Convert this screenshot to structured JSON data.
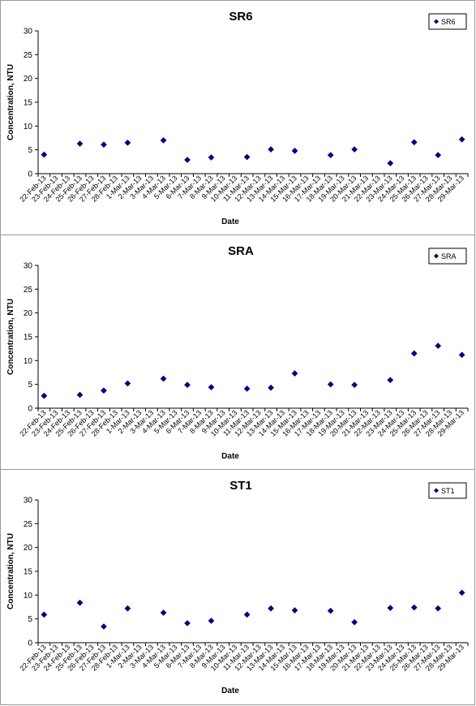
{
  "chart_data": [
    {
      "type": "scatter",
      "title": "SR6",
      "xlabel": "Date",
      "ylabel": "Concentration, NTU",
      "ylim": [
        0,
        30
      ],
      "yticks": [
        0,
        5,
        10,
        15,
        20,
        25,
        30
      ],
      "grid": false,
      "legend_position": "top-right",
      "marker_color": "#000080",
      "categories": [
        "22-Feb-13",
        "23-Feb-13",
        "24-Feb-13",
        "25-Feb-13",
        "26-Feb-13",
        "27-Feb-13",
        "28-Feb-13",
        "1-Mar-13",
        "2-Mar-13",
        "3-Mar-13",
        "4-Mar-13",
        "5-Mar-13",
        "6-Mar-13",
        "7-Mar-13",
        "8-Mar-13",
        "9-Mar-13",
        "10-Mar-13",
        "11-Mar-13",
        "12-Mar-13",
        "13-Mar-13",
        "14-Mar-13",
        "15-Mar-13",
        "16-Mar-13",
        "17-Mar-13",
        "18-Mar-13",
        "19-Mar-13",
        "20-Mar-13",
        "21-Mar-13",
        "22-Mar-13",
        "23-Mar-13",
        "24-Mar-13",
        "25-Mar-13",
        "26-Mar-13",
        "27-Mar-13",
        "28-Mar-13",
        "29-Mar-13"
      ],
      "series": [
        {
          "name": "SR6",
          "points": [
            {
              "x": "22-Feb-13",
              "y": 4.0
            },
            {
              "x": "25-Feb-13",
              "y": 6.3
            },
            {
              "x": "27-Feb-13",
              "y": 6.1
            },
            {
              "x": "1-Mar-13",
              "y": 6.5
            },
            {
              "x": "4-Mar-13",
              "y": 7.0
            },
            {
              "x": "6-Mar-13",
              "y": 2.9
            },
            {
              "x": "8-Mar-13",
              "y": 3.4
            },
            {
              "x": "11-Mar-13",
              "y": 3.5
            },
            {
              "x": "13-Mar-13",
              "y": 5.1
            },
            {
              "x": "15-Mar-13",
              "y": 4.8
            },
            {
              "x": "18-Mar-13",
              "y": 3.9
            },
            {
              "x": "20-Mar-13",
              "y": 5.1
            },
            {
              "x": "23-Mar-13",
              "y": 2.2
            },
            {
              "x": "25-Mar-13",
              "y": 6.6
            },
            {
              "x": "27-Mar-13",
              "y": 3.9
            },
            {
              "x": "29-Mar-13",
              "y": 7.2
            }
          ]
        }
      ]
    },
    {
      "type": "scatter",
      "title": "SRA",
      "xlabel": "Date",
      "ylabel": "Concentration, NTU",
      "ylim": [
        0,
        30
      ],
      "yticks": [
        0,
        5,
        10,
        15,
        20,
        25,
        30
      ],
      "grid": false,
      "legend_position": "top-right",
      "marker_color": "#000080",
      "categories": [
        "22-Feb-13",
        "23-Feb-13",
        "24-Feb-13",
        "25-Feb-13",
        "26-Feb-13",
        "27-Feb-13",
        "28-Feb-13",
        "1-Mar-13",
        "2-Mar-13",
        "3-Mar-13",
        "4-Mar-13",
        "5-Mar-13",
        "6-Mar-13",
        "7-Mar-13",
        "8-Mar-13",
        "9-Mar-13",
        "10-Mar-13",
        "11-Mar-13",
        "12-Mar-13",
        "13-Mar-13",
        "14-Mar-13",
        "15-Mar-13",
        "16-Mar-13",
        "17-Mar-13",
        "18-Mar-13",
        "19-Mar-13",
        "20-Mar-13",
        "21-Mar-13",
        "22-Mar-13",
        "23-Mar-13",
        "24-Mar-13",
        "25-Mar-13",
        "26-Mar-13",
        "27-Mar-13",
        "28-Mar-13",
        "29-Mar-13"
      ],
      "series": [
        {
          "name": "SRA",
          "points": [
            {
              "x": "22-Feb-13",
              "y": 2.6
            },
            {
              "x": "25-Feb-13",
              "y": 2.8
            },
            {
              "x": "27-Feb-13",
              "y": 3.7
            },
            {
              "x": "1-Mar-13",
              "y": 5.2
            },
            {
              "x": "4-Mar-13",
              "y": 6.2
            },
            {
              "x": "6-Mar-13",
              "y": 4.9
            },
            {
              "x": "8-Mar-13",
              "y": 4.4
            },
            {
              "x": "11-Mar-13",
              "y": 4.1
            },
            {
              "x": "13-Mar-13",
              "y": 4.3
            },
            {
              "x": "15-Mar-13",
              "y": 7.3
            },
            {
              "x": "18-Mar-13",
              "y": 5.0
            },
            {
              "x": "20-Mar-13",
              "y": 4.9
            },
            {
              "x": "23-Mar-13",
              "y": 5.9
            },
            {
              "x": "25-Mar-13",
              "y": 11.5
            },
            {
              "x": "27-Mar-13",
              "y": 13.1
            },
            {
              "x": "29-Mar-13",
              "y": 11.2
            }
          ]
        }
      ]
    },
    {
      "type": "scatter",
      "title": "ST1",
      "xlabel": "Date",
      "ylabel": "Concentration, NTU",
      "ylim": [
        0,
        30
      ],
      "yticks": [
        0,
        5,
        10,
        15,
        20,
        25,
        30
      ],
      "grid": false,
      "legend_position": "top-right",
      "marker_color": "#000080",
      "categories": [
        "22-Feb-13",
        "23-Feb-13",
        "24-Feb-13",
        "25-Feb-13",
        "26-Feb-13",
        "27-Feb-13",
        "28-Feb-13",
        "1-Mar-13",
        "2-Mar-13",
        "3-Mar-13",
        "4-Mar-13",
        "5-Mar-13",
        "6-Mar-13",
        "7-Mar-13",
        "8-Mar-13",
        "9-Mar-13",
        "10-Mar-13",
        "11-Mar-13",
        "12-Mar-13",
        "13-Mar-13",
        "14-Mar-13",
        "15-Mar-13",
        "16-Mar-13",
        "17-Mar-13",
        "18-Mar-13",
        "19-Mar-13",
        "20-Mar-13",
        "21-Mar-13",
        "22-Mar-13",
        "23-Mar-13",
        "24-Mar-13",
        "25-Mar-13",
        "26-Mar-13",
        "27-Mar-13",
        "28-Mar-13",
        "29-Mar-13"
      ],
      "series": [
        {
          "name": "ST1",
          "points": [
            {
              "x": "22-Feb-13",
              "y": 5.9
            },
            {
              "x": "25-Feb-13",
              "y": 8.4
            },
            {
              "x": "27-Feb-13",
              "y": 3.4
            },
            {
              "x": "1-Mar-13",
              "y": 7.2
            },
            {
              "x": "4-Mar-13",
              "y": 6.3
            },
            {
              "x": "6-Mar-13",
              "y": 4.1
            },
            {
              "x": "8-Mar-13",
              "y": 4.6
            },
            {
              "x": "11-Mar-13",
              "y": 5.9
            },
            {
              "x": "13-Mar-13",
              "y": 7.2
            },
            {
              "x": "15-Mar-13",
              "y": 6.8
            },
            {
              "x": "18-Mar-13",
              "y": 6.7
            },
            {
              "x": "20-Mar-13",
              "y": 4.3
            },
            {
              "x": "23-Mar-13",
              "y": 7.3
            },
            {
              "x": "25-Mar-13",
              "y": 7.4
            },
            {
              "x": "27-Mar-13",
              "y": 7.2
            },
            {
              "x": "29-Mar-13",
              "y": 10.5
            }
          ]
        }
      ]
    }
  ]
}
